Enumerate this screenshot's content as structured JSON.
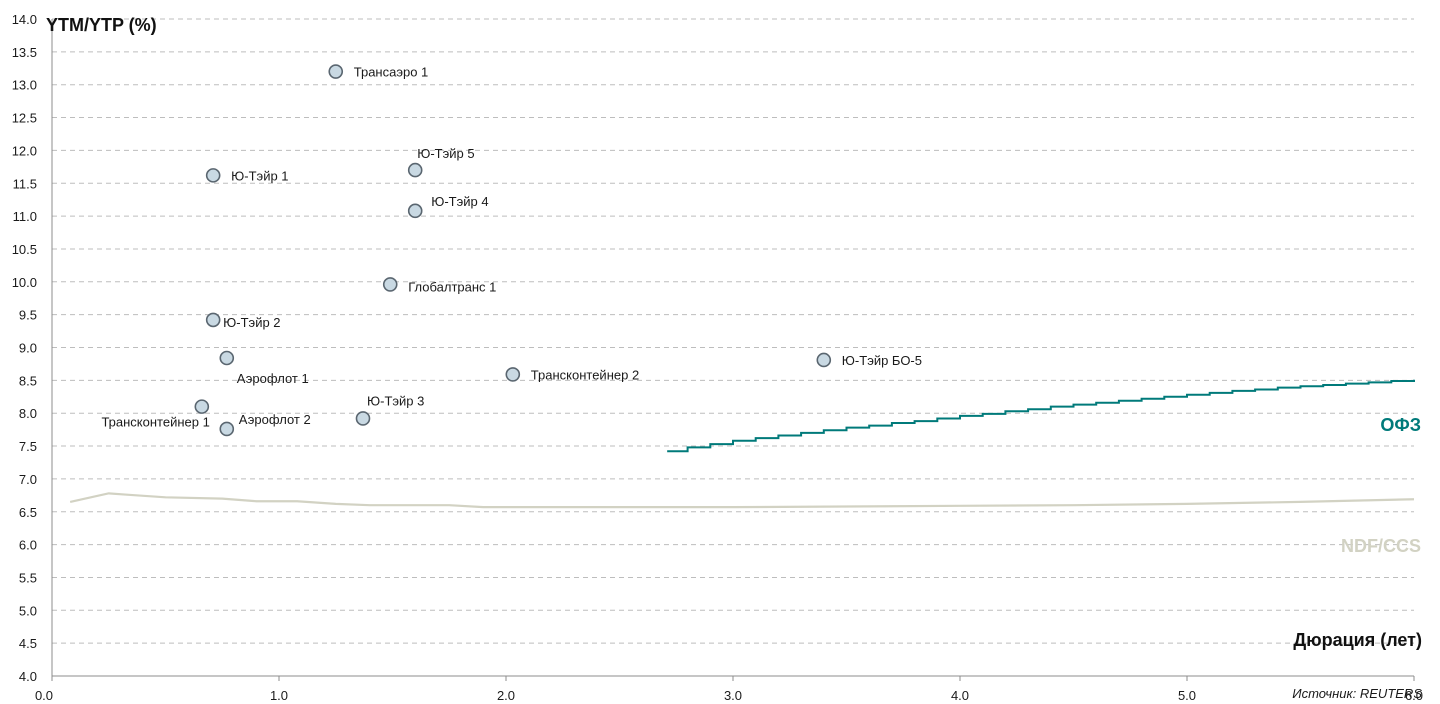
{
  "chart_data": {
    "type": "scatter",
    "title": "",
    "ylabel": "YTM/YTP (%)",
    "xlabel": "Дюрация (лет)",
    "source": "Источник: REUTERS",
    "xlim": [
      0.0,
      6.0
    ],
    "ylim": [
      4.0,
      14.0
    ],
    "x_ticks": [
      "0.0",
      "1.0",
      "2.0",
      "3.0",
      "4.0",
      "5.0",
      "6.0"
    ],
    "y_ticks": [
      "4.0",
      "4.5",
      "5.0",
      "5.5",
      "6.0",
      "6.5",
      "7.0",
      "7.5",
      "8.0",
      "8.5",
      "9.0",
      "9.5",
      "10.0",
      "10.5",
      "11.0",
      "11.5",
      "12.0",
      "12.5",
      "13.0",
      "13.5",
      "14.0"
    ],
    "grid": true,
    "colors": {
      "point_fill": "#c9d9e3",
      "point_stroke": "#5a6670",
      "ofz_line": "#007a7a",
      "ndf_line": "#d2d2c3",
      "grid": "#bdbdbd"
    },
    "points": [
      {
        "label": "Трансаэро 1",
        "x": 1.25,
        "y": 13.2
      },
      {
        "label": "Ю-Тэйр 5",
        "x": 1.6,
        "y": 11.7
      },
      {
        "label": "Ю-Тэйр 1",
        "x": 0.71,
        "y": 11.62
      },
      {
        "label": "Ю-Тэйр 4",
        "x": 1.6,
        "y": 11.08
      },
      {
        "label": "Глобалтранс 1",
        "x": 1.49,
        "y": 9.96
      },
      {
        "label": "Ю-Тэйр 2",
        "x": 0.71,
        "y": 9.42
      },
      {
        "label": "Аэрофлот 1",
        "x": 0.77,
        "y": 8.84
      },
      {
        "label": "Ю-Тэйр БО-5",
        "x": 3.4,
        "y": 8.81
      },
      {
        "label": "Трансконтейнер 2",
        "x": 2.03,
        "y": 8.59
      },
      {
        "label": "Трансконтейнер 1",
        "x": 0.66,
        "y": 8.1
      },
      {
        "label": "Ю-Тэйр 3",
        "x": 1.37,
        "y": 7.92
      },
      {
        "label": "Аэрофлот 2",
        "x": 0.77,
        "y": 7.76
      }
    ],
    "series": [
      {
        "name": "ОФЗ",
        "type": "step-line",
        "x": [
          2.71,
          2.8,
          2.9,
          3.0,
          3.1,
          3.2,
          3.3,
          3.4,
          3.5,
          3.6,
          3.7,
          3.8,
          3.9,
          4.0,
          4.1,
          4.2,
          4.3,
          4.4,
          4.5,
          4.6,
          4.7,
          4.8,
          4.9,
          5.0,
          5.1,
          5.2,
          5.3,
          5.4,
          5.5,
          5.6,
          5.7,
          5.8,
          5.9,
          6.0
        ],
        "y": [
          7.42,
          7.48,
          7.53,
          7.58,
          7.62,
          7.66,
          7.7,
          7.74,
          7.78,
          7.81,
          7.85,
          7.88,
          7.92,
          7.96,
          7.99,
          8.03,
          8.06,
          8.1,
          8.13,
          8.16,
          8.19,
          8.22,
          8.25,
          8.28,
          8.31,
          8.34,
          8.36,
          8.39,
          8.41,
          8.43,
          8.45,
          8.47,
          8.49,
          8.51
        ]
      },
      {
        "name": "NDF/CCS",
        "type": "line",
        "x": [
          0.08,
          0.25,
          0.33,
          0.5,
          0.75,
          0.9,
          1.08,
          1.25,
          1.4,
          1.75,
          1.9,
          2.5,
          3.0,
          3.5,
          4.0,
          4.5,
          5.0,
          5.5,
          6.0
        ],
        "y": [
          6.65,
          6.78,
          6.76,
          6.72,
          6.7,
          6.66,
          6.66,
          6.62,
          6.6,
          6.6,
          6.57,
          6.57,
          6.57,
          6.58,
          6.59,
          6.6,
          6.62,
          6.65,
          6.69
        ]
      }
    ]
  }
}
